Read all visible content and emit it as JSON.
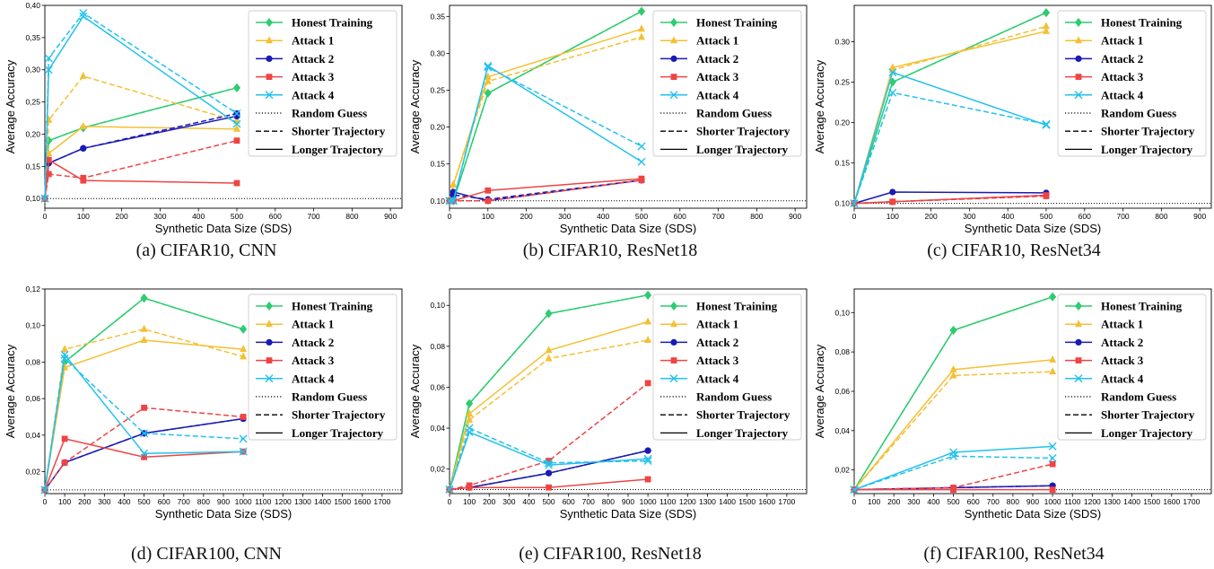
{
  "styles": {
    "Honest Training": {
      "color": "#2ecc71",
      "marker": "diamond"
    },
    "Attack 1": {
      "color": "#f4c033",
      "marker": "triangle"
    },
    "Attack 2": {
      "color": "#1a1ab5",
      "marker": "circle"
    },
    "Attack 3": {
      "color": "#ef4444",
      "marker": "square"
    },
    "Attack 4": {
      "color": "#22c2ee",
      "marker": "x"
    }
  },
  "legend_entries": [
    {
      "label": "Honest Training",
      "kind": "series"
    },
    {
      "label": "Attack 1",
      "kind": "series"
    },
    {
      "label": "Attack 2",
      "kind": "series"
    },
    {
      "label": "Attack 3",
      "kind": "series"
    },
    {
      "label": "Attack 4",
      "kind": "series"
    },
    {
      "label": "Random Guess",
      "kind": "dotted"
    },
    {
      "label": "Shorter Trajectory",
      "kind": "dashed"
    },
    {
      "label": "Longer Trajectory",
      "kind": "solid"
    }
  ],
  "chart_data": [
    {
      "type": "line",
      "caption": "(a) CIFAR10, CNN",
      "xlabel": "Synthetic Data Size (SDS)",
      "ylabel": "Average Accuracy",
      "xlim": [
        0,
        930
      ],
      "ylim": [
        0.085,
        0.4
      ],
      "xticks": [
        0,
        100,
        200,
        300,
        400,
        500,
        600,
        700,
        800,
        900
      ],
      "yticks": [
        0.1,
        0.15,
        0.2,
        0.25,
        0.3,
        0.35,
        0.4
      ],
      "ytick_labels": [
        "0,10",
        "0,15",
        "0,20",
        "0,25",
        "0,30",
        "0,35",
        "0,40"
      ],
      "random_guess": 0.1,
      "legend_placement": "top-right",
      "x": [
        0,
        10,
        100,
        500
      ],
      "series": [
        {
          "name": "Honest Training",
          "trajectory": "longer",
          "values": [
            0.1,
            0.19,
            0.21,
            0.272
          ]
        },
        {
          "name": "Honest Training",
          "trajectory": "shorter",
          "values": [
            0.1,
            0.19,
            0.21,
            0.272
          ]
        },
        {
          "name": "Attack 1",
          "trajectory": "longer",
          "values": [
            0.1,
            0.17,
            0.212,
            0.208
          ]
        },
        {
          "name": "Attack 1",
          "trajectory": "shorter",
          "values": [
            0.1,
            0.222,
            0.29,
            0.22
          ]
        },
        {
          "name": "Attack 2",
          "trajectory": "longer",
          "values": [
            0.1,
            0.155,
            0.178,
            0.228
          ]
        },
        {
          "name": "Attack 2",
          "trajectory": "shorter",
          "values": [
            0.1,
            0.155,
            0.178,
            0.232
          ]
        },
        {
          "name": "Attack 3",
          "trajectory": "longer",
          "values": [
            0.1,
            0.16,
            0.128,
            0.124
          ]
        },
        {
          "name": "Attack 3",
          "trajectory": "shorter",
          "values": [
            0.1,
            0.138,
            0.132,
            0.19
          ]
        },
        {
          "name": "Attack 4",
          "trajectory": "longer",
          "values": [
            0.1,
            0.3,
            0.383,
            0.216
          ]
        },
        {
          "name": "Attack 4",
          "trajectory": "shorter",
          "values": [
            0.1,
            0.318,
            0.388,
            0.232
          ]
        }
      ]
    },
    {
      "type": "line",
      "caption": "(b) CIFAR10, ResNet18",
      "xlabel": "Synthetic Data Size (SDS)",
      "ylabel": "Average Accuracy",
      "xlim": [
        0,
        930
      ],
      "ylim": [
        0.09,
        0.365
      ],
      "xticks": [
        0,
        100,
        200,
        300,
        400,
        500,
        600,
        700,
        800,
        900
      ],
      "yticks": [
        0.1,
        0.15,
        0.2,
        0.25,
        0.3,
        0.35
      ],
      "ytick_labels": [
        "0.10",
        "0.15",
        "0.20",
        "0.25",
        "0.30",
        "0.35"
      ],
      "random_guess": 0.1,
      "legend_placement": "top-right",
      "x": [
        0,
        10,
        100,
        500
      ],
      "series": [
        {
          "name": "Honest Training",
          "trajectory": "longer",
          "values": [
            0.1,
            0.1,
            0.246,
            0.357
          ]
        },
        {
          "name": "Honest Training",
          "trajectory": "shorter",
          "values": [
            0.1,
            0.1,
            0.246,
            0.357
          ]
        },
        {
          "name": "Attack 1",
          "trajectory": "longer",
          "values": [
            0.1,
            0.122,
            0.268,
            0.333
          ]
        },
        {
          "name": "Attack 1",
          "trajectory": "shorter",
          "values": [
            0.1,
            0.122,
            0.262,
            0.322
          ]
        },
        {
          "name": "Attack 2",
          "trajectory": "longer",
          "values": [
            0.1,
            0.112,
            0.1,
            0.128
          ]
        },
        {
          "name": "Attack 2",
          "trajectory": "shorter",
          "values": [
            0.1,
            0.108,
            0.102,
            0.128
          ]
        },
        {
          "name": "Attack 3",
          "trajectory": "longer",
          "values": [
            0.1,
            0.1,
            0.114,
            0.13
          ]
        },
        {
          "name": "Attack 3",
          "trajectory": "shorter",
          "values": [
            0.1,
            0.1,
            0.1,
            0.128
          ]
        },
        {
          "name": "Attack 4",
          "trajectory": "longer",
          "values": [
            0.1,
            0.1,
            0.283,
            0.153
          ]
        },
        {
          "name": "Attack 4",
          "trajectory": "shorter",
          "values": [
            0.1,
            0.1,
            0.281,
            0.174
          ]
        }
      ]
    },
    {
      "type": "line",
      "caption": "(c) CIFAR10, ResNet34",
      "xlabel": "Synthetic Data Size (SDS)",
      "ylabel": "Average Accuracy",
      "xlim": [
        0,
        930
      ],
      "ylim": [
        0.094,
        0.345
      ],
      "xticks": [
        0,
        100,
        200,
        300,
        400,
        500,
        600,
        700,
        800,
        900
      ],
      "yticks": [
        0.1,
        0.15,
        0.2,
        0.25,
        0.3
      ],
      "ytick_labels": [
        "0.10",
        "0.15",
        "0.20",
        "0.25",
        "0.30"
      ],
      "random_guess": 0.1,
      "legend_placement": "top-right",
      "x": [
        0,
        100,
        500
      ],
      "series": [
        {
          "name": "Honest Training",
          "trajectory": "longer",
          "values": [
            0.1,
            0.25,
            0.336
          ]
        },
        {
          "name": "Honest Training",
          "trajectory": "shorter",
          "values": [
            0.1,
            0.25,
            0.336
          ]
        },
        {
          "name": "Attack 1",
          "trajectory": "longer",
          "values": [
            0.1,
            0.268,
            0.313
          ]
        },
        {
          "name": "Attack 1",
          "trajectory": "shorter",
          "values": [
            0.1,
            0.265,
            0.319
          ]
        },
        {
          "name": "Attack 2",
          "trajectory": "longer",
          "values": [
            0.1,
            0.114,
            0.113
          ]
        },
        {
          "name": "Attack 2",
          "trajectory": "shorter",
          "values": [
            0.1,
            0.102,
            0.11
          ]
        },
        {
          "name": "Attack 3",
          "trajectory": "longer",
          "values": [
            0.1,
            0.102,
            0.11
          ]
        },
        {
          "name": "Attack 3",
          "trajectory": "shorter",
          "values": [
            0.1,
            0.102,
            0.109
          ]
        },
        {
          "name": "Attack 4",
          "trajectory": "longer",
          "values": [
            0.1,
            0.262,
            0.197
          ]
        },
        {
          "name": "Attack 4",
          "trajectory": "shorter",
          "values": [
            0.1,
            0.237,
            0.198
          ]
        }
      ]
    },
    {
      "type": "line",
      "caption": "(d) CIFAR100, CNN",
      "xlabel": "Synthetic Data Size (SDS)",
      "ylabel": "Average Accuracy",
      "xlim": [
        0,
        1800
      ],
      "ylim": [
        0.008,
        0.12
      ],
      "xticks": [
        0,
        100,
        200,
        300,
        400,
        500,
        600,
        700,
        800,
        900,
        1000,
        1100,
        1200,
        1300,
        1400,
        1500,
        1600,
        1700
      ],
      "yticks": [
        0.02,
        0.04,
        0.06,
        0.08,
        0.1,
        0.12
      ],
      "ytick_labels": [
        "0,02",
        "0,04",
        "0,06",
        "0,08",
        "0,10",
        "0,12"
      ],
      "random_guess": 0.01,
      "legend_placement": "top-right",
      "x": [
        0,
        100,
        500,
        1000
      ],
      "series": [
        {
          "name": "Honest Training",
          "trajectory": "longer",
          "values": [
            0.01,
            0.08,
            0.115,
            0.098
          ]
        },
        {
          "name": "Honest Training",
          "trajectory": "shorter",
          "values": [
            0.01,
            0.08,
            0.115,
            0.098
          ]
        },
        {
          "name": "Attack 1",
          "trajectory": "longer",
          "values": [
            0.01,
            0.077,
            0.092,
            0.087
          ]
        },
        {
          "name": "Attack 1",
          "trajectory": "shorter",
          "values": [
            0.01,
            0.087,
            0.098,
            0.083
          ]
        },
        {
          "name": "Attack 2",
          "trajectory": "longer",
          "values": [
            0.01,
            0.025,
            0.041,
            0.049
          ]
        },
        {
          "name": "Attack 2",
          "trajectory": "shorter",
          "values": [
            0.01,
            0.025,
            0.041,
            0.049
          ]
        },
        {
          "name": "Attack 3",
          "trajectory": "longer",
          "values": [
            0.01,
            0.038,
            0.028,
            0.031
          ]
        },
        {
          "name": "Attack 3",
          "trajectory": "shorter",
          "values": [
            0.01,
            0.025,
            0.055,
            0.05
          ]
        },
        {
          "name": "Attack 4",
          "trajectory": "longer",
          "values": [
            0.01,
            0.084,
            0.03,
            0.031
          ]
        },
        {
          "name": "Attack 4",
          "trajectory": "shorter",
          "values": [
            0.01,
            0.082,
            0.041,
            0.038
          ]
        }
      ]
    },
    {
      "type": "line",
      "caption": "(e) CIFAR100, ResNet18",
      "xlabel": "Synthetic Data Size (SDS)",
      "ylabel": "Average Accuracy",
      "xlim": [
        0,
        1800
      ],
      "ylim": [
        0.008,
        0.108
      ],
      "xticks": [
        0,
        100,
        200,
        300,
        400,
        500,
        600,
        700,
        800,
        900,
        1000,
        1100,
        1200,
        1300,
        1400,
        1500,
        1600,
        1700
      ],
      "yticks": [
        0.02,
        0.04,
        0.06,
        0.08,
        0.1
      ],
      "ytick_labels": [
        "0,02",
        "0,04",
        "0,06",
        "0,08",
        "0,10"
      ],
      "random_guess": 0.01,
      "legend_placement": "top-right",
      "x": [
        0,
        100,
        500,
        1000
      ],
      "series": [
        {
          "name": "Honest Training",
          "trajectory": "longer",
          "values": [
            0.01,
            0.052,
            0.096,
            0.105
          ]
        },
        {
          "name": "Honest Training",
          "trajectory": "shorter",
          "values": [
            0.01,
            0.052,
            0.096,
            0.105
          ]
        },
        {
          "name": "Attack 1",
          "trajectory": "longer",
          "values": [
            0.01,
            0.047,
            0.078,
            0.092
          ]
        },
        {
          "name": "Attack 1",
          "trajectory": "shorter",
          "values": [
            0.01,
            0.044,
            0.074,
            0.083
          ]
        },
        {
          "name": "Attack 2",
          "trajectory": "longer",
          "values": [
            0.01,
            0.011,
            0.018,
            0.029
          ]
        },
        {
          "name": "Attack 2",
          "trajectory": "shorter",
          "values": [
            0.01,
            0.011,
            0.018,
            0.029
          ]
        },
        {
          "name": "Attack 3",
          "trajectory": "longer",
          "values": [
            0.01,
            0.011,
            0.011,
            0.015
          ]
        },
        {
          "name": "Attack 3",
          "trajectory": "shorter",
          "values": [
            0.01,
            0.012,
            0.024,
            0.062
          ]
        },
        {
          "name": "Attack 4",
          "trajectory": "longer",
          "values": [
            0.01,
            0.038,
            0.022,
            0.025
          ]
        },
        {
          "name": "Attack 4",
          "trajectory": "shorter",
          "values": [
            0.01,
            0.04,
            0.023,
            0.024
          ]
        }
      ]
    },
    {
      "type": "line",
      "caption": "(f) CIFAR100, ResNet34",
      "xlabel": "Synthetic Data Size (SDS)",
      "ylabel": "Average Accuracy",
      "xlim": [
        0,
        1800
      ],
      "ylim": [
        0.008,
        0.112
      ],
      "xticks": [
        0,
        100,
        200,
        300,
        400,
        500,
        600,
        700,
        800,
        900,
        1000,
        1100,
        1200,
        1300,
        1400,
        1500,
        1600,
        1700
      ],
      "yticks": [
        0.02,
        0.04,
        0.06,
        0.08,
        0.1
      ],
      "ytick_labels": [
        "0,02",
        "0,04",
        "0,06",
        "0,08",
        "0,10"
      ],
      "random_guess": 0.01,
      "legend_placement": "top-right",
      "x": [
        0,
        500,
        1000
      ],
      "series": [
        {
          "name": "Honest Training",
          "trajectory": "longer",
          "values": [
            0.01,
            0.091,
            0.108
          ]
        },
        {
          "name": "Honest Training",
          "trajectory": "shorter",
          "values": [
            0.01,
            0.091,
            0.108
          ]
        },
        {
          "name": "Attack 1",
          "trajectory": "longer",
          "values": [
            0.01,
            0.071,
            0.076
          ]
        },
        {
          "name": "Attack 1",
          "trajectory": "shorter",
          "values": [
            0.01,
            0.068,
            0.07
          ]
        },
        {
          "name": "Attack 2",
          "trajectory": "longer",
          "values": [
            0.01,
            0.011,
            0.012
          ]
        },
        {
          "name": "Attack 2",
          "trajectory": "shorter",
          "values": [
            0.01,
            0.011,
            0.012
          ]
        },
        {
          "name": "Attack 3",
          "trajectory": "longer",
          "values": [
            0.01,
            0.01,
            0.01
          ]
        },
        {
          "name": "Attack 3",
          "trajectory": "shorter",
          "values": [
            0.01,
            0.011,
            0.023
          ]
        },
        {
          "name": "Attack 4",
          "trajectory": "longer",
          "values": [
            0.01,
            0.029,
            0.032
          ]
        },
        {
          "name": "Attack 4",
          "trajectory": "shorter",
          "values": [
            0.01,
            0.027,
            0.026
          ]
        }
      ]
    }
  ]
}
